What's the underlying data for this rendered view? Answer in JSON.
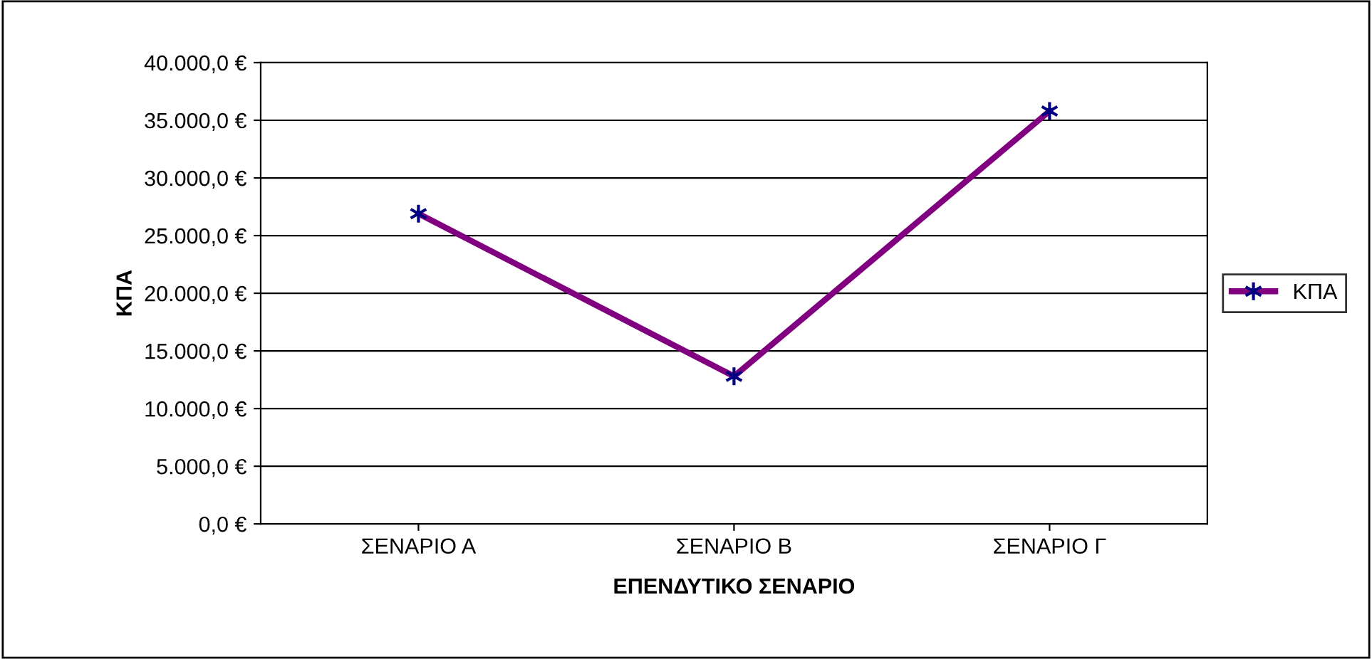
{
  "chart_data": {
    "type": "line",
    "xlabel": "ΕΠΕΝΔΥΤΙΚΟ ΣΕΝΑΡΙΟ",
    "ylabel": "ΚΠΑ",
    "categories": [
      "ΣΕΝΑΡΙΟ Α",
      "ΣΕΝΑΡΙΟ Β",
      "ΣΕΝΑΡΙΟ Γ"
    ],
    "series": [
      {
        "name": "ΚΠΑ",
        "color": "#800080",
        "values": [
          26900,
          12800,
          35800
        ]
      }
    ],
    "ylim": [
      0,
      40000
    ],
    "yticks": [
      {
        "value": 0,
        "label": "0,0 €"
      },
      {
        "value": 5000,
        "label": "5.000,0 €"
      },
      {
        "value": 10000,
        "label": "10.000,0 €"
      },
      {
        "value": 15000,
        "label": "15.000,0 €"
      },
      {
        "value": 20000,
        "label": "20.000,0 €"
      },
      {
        "value": 25000,
        "label": "25.000,0 €"
      },
      {
        "value": 30000,
        "label": "30.000,0 €"
      },
      {
        "value": 35000,
        "label": "35.000,0 €"
      },
      {
        "value": 40000,
        "label": "40.000,0 €"
      }
    ],
    "grid": "y",
    "legend": "right",
    "marker": "cross",
    "line_style": "solid"
  }
}
